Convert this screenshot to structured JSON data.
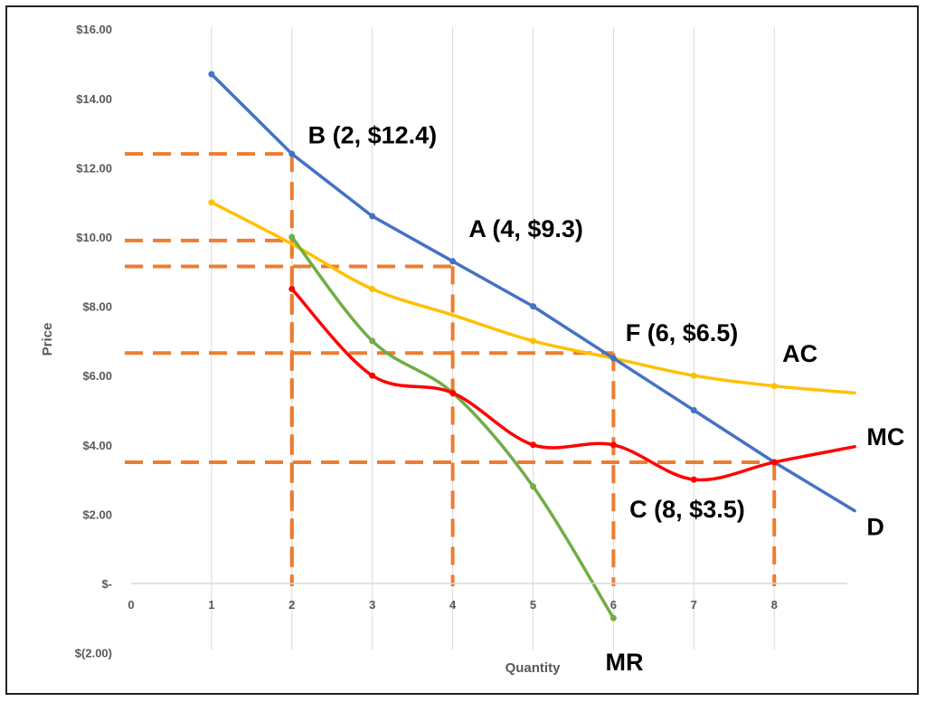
{
  "chart_data": {
    "type": "line",
    "xlabel": "Quantity",
    "ylabel": "Price",
    "xlim": [
      0,
      9
    ],
    "ylim": [
      -2,
      16
    ],
    "x_ticks": [
      "0",
      "1",
      "2",
      "3",
      "4",
      "5",
      "6",
      "7",
      "8"
    ],
    "y_ticks": [
      {
        "value": 16,
        "label": "$16.00"
      },
      {
        "value": 14,
        "label": "$14.00"
      },
      {
        "value": 12,
        "label": "$12.00"
      },
      {
        "value": 10,
        "label": "$10.00"
      },
      {
        "value": 8,
        "label": "$8.00"
      },
      {
        "value": 6,
        "label": "$6.00"
      },
      {
        "value": 4,
        "label": "$4.00"
      },
      {
        "value": 2,
        "label": "$2.00"
      },
      {
        "value": 0,
        "label": "$-"
      },
      {
        "value": -2,
        "label": "$(2.00)"
      }
    ],
    "grid": "vertical",
    "series": [
      {
        "name": "D",
        "color": "#4472C4",
        "smooth": false,
        "points": [
          [
            1,
            14.7
          ],
          [
            2,
            12.4
          ],
          [
            3,
            10.6
          ],
          [
            4,
            9.3
          ],
          [
            5,
            8.0
          ],
          [
            6,
            6.5
          ],
          [
            7,
            5.0
          ],
          [
            8,
            3.5
          ],
          [
            9,
            2.1
          ]
        ],
        "markers": [
          1,
          2,
          3,
          4,
          5,
          6,
          7,
          8
        ]
      },
      {
        "name": "AC",
        "color": "#FFC000",
        "smooth": true,
        "points": [
          [
            1,
            11.0
          ],
          [
            2,
            9.8
          ],
          [
            3,
            8.5
          ],
          [
            4,
            7.75
          ],
          [
            5,
            7.0
          ],
          [
            6,
            6.5
          ],
          [
            7,
            6.0
          ],
          [
            8,
            5.7
          ],
          [
            9,
            5.5
          ]
        ],
        "markers": [
          1,
          3,
          5,
          7,
          8
        ]
      },
      {
        "name": "MC",
        "color": "#FF0000",
        "smooth": true,
        "points": [
          [
            2,
            8.5
          ],
          [
            3,
            6.0
          ],
          [
            4,
            5.5
          ],
          [
            5,
            4.0
          ],
          [
            6,
            4.0
          ],
          [
            7,
            3.0
          ],
          [
            8,
            3.5
          ],
          [
            9,
            3.95
          ]
        ],
        "markers": [
          2,
          3,
          4,
          5,
          6,
          7,
          8
        ]
      },
      {
        "name": "MR",
        "color": "#70AD47",
        "smooth": true,
        "points": [
          [
            2,
            10.0
          ],
          [
            3,
            7.0
          ],
          [
            4,
            5.5
          ],
          [
            5,
            2.8
          ],
          [
            6,
            -1.0
          ]
        ],
        "markers": [
          2,
          3,
          4,
          5,
          6
        ]
      }
    ],
    "guides": [
      {
        "x": 2,
        "y": 12.4
      },
      {
        "x": 2,
        "y": 9.9
      },
      {
        "x": 4,
        "y": 9.15
      },
      {
        "x": 6,
        "y": 6.65
      },
      {
        "x": 8,
        "y": 3.5
      }
    ],
    "guide_color": "#ED7D31",
    "annotations": [
      {
        "text": "B (2, $12.4)",
        "x": 2.2,
        "y": 12.7
      },
      {
        "text": "A (4, $9.3)",
        "x": 4.2,
        "y": 10.0
      },
      {
        "text": "F (6, $6.5)",
        "x": 6.15,
        "y": 7.0
      },
      {
        "text": "C (8, $3.5)",
        "x": 6.2,
        "y": 1.9
      }
    ],
    "series_labels": [
      {
        "text": "AC",
        "x": 8.1,
        "y": 6.4
      },
      {
        "text": "MC",
        "x": 9.15,
        "y": 4.0
      },
      {
        "text": "D",
        "x": 9.15,
        "y": 1.4
      },
      {
        "text": "MR",
        "x": 5.9,
        "y": -2.5
      }
    ]
  }
}
